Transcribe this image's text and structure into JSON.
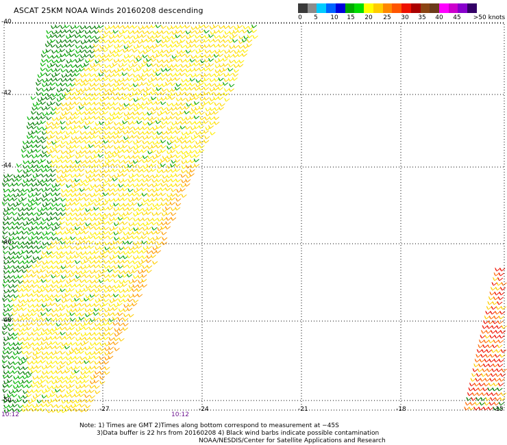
{
  "title": "ASCAT 25KM NOAA Winds 20160208 descending",
  "colorbar": {
    "colors": [
      "#3a3a3a",
      "#8c8c8c",
      "#00ccff",
      "#0064ff",
      "#0000dd",
      "#00aa00",
      "#00dd00",
      "#ffff00",
      "#ffcc00",
      "#ff8800",
      "#ff5500",
      "#ee1100",
      "#aa0000",
      "#8b4513",
      "#6b3a1a",
      "#ff00ff",
      "#cc00cc",
      "#8800cc",
      "#330066"
    ],
    "labels": [
      "0",
      "5",
      "10",
      "15",
      "20",
      "25",
      "30",
      "35",
      "40",
      "45",
      ">50 knots"
    ]
  },
  "latitudes": [
    "-40",
    "-42",
    "-44",
    "-46",
    "-48",
    "-50"
  ],
  "longitudes": [
    "-27",
    "-24",
    "-21",
    "-18",
    "-15"
  ],
  "times": [
    "10:12",
    "10:12"
  ],
  "notes": [
    "Note: 1) Times are GMT 2)Times along bottom correspond to measurement at −45S",
    "3)Data buffer is 22 hrs from 20160208 4) Black wind barbs indicate possible contamination",
    "NOAA/NESDIS/Center for Satellite Applications and Research"
  ]
}
